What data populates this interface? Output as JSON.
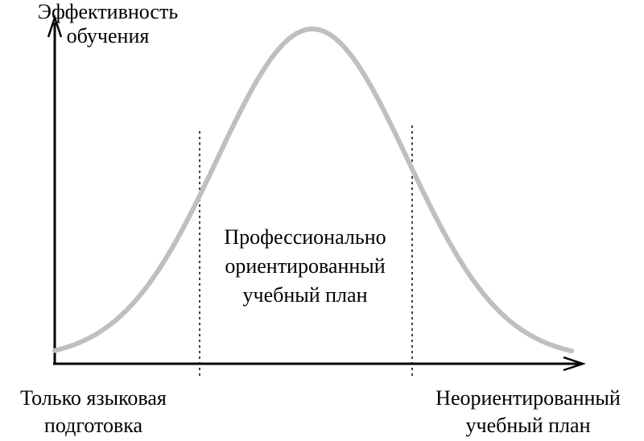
{
  "y_axis_label": [
    "Эффективность",
    "обучения"
  ],
  "center_label": [
    "Профессионально",
    "ориентированный",
    "учебный план"
  ],
  "left_end_label": [
    "Только языковая",
    "подготовка"
  ],
  "right_end_label": [
    "Неориентированный",
    "учебный план"
  ],
  "colors": {
    "curve": "#bfbfbf",
    "axes": "#000000",
    "divider": "#000000"
  }
}
